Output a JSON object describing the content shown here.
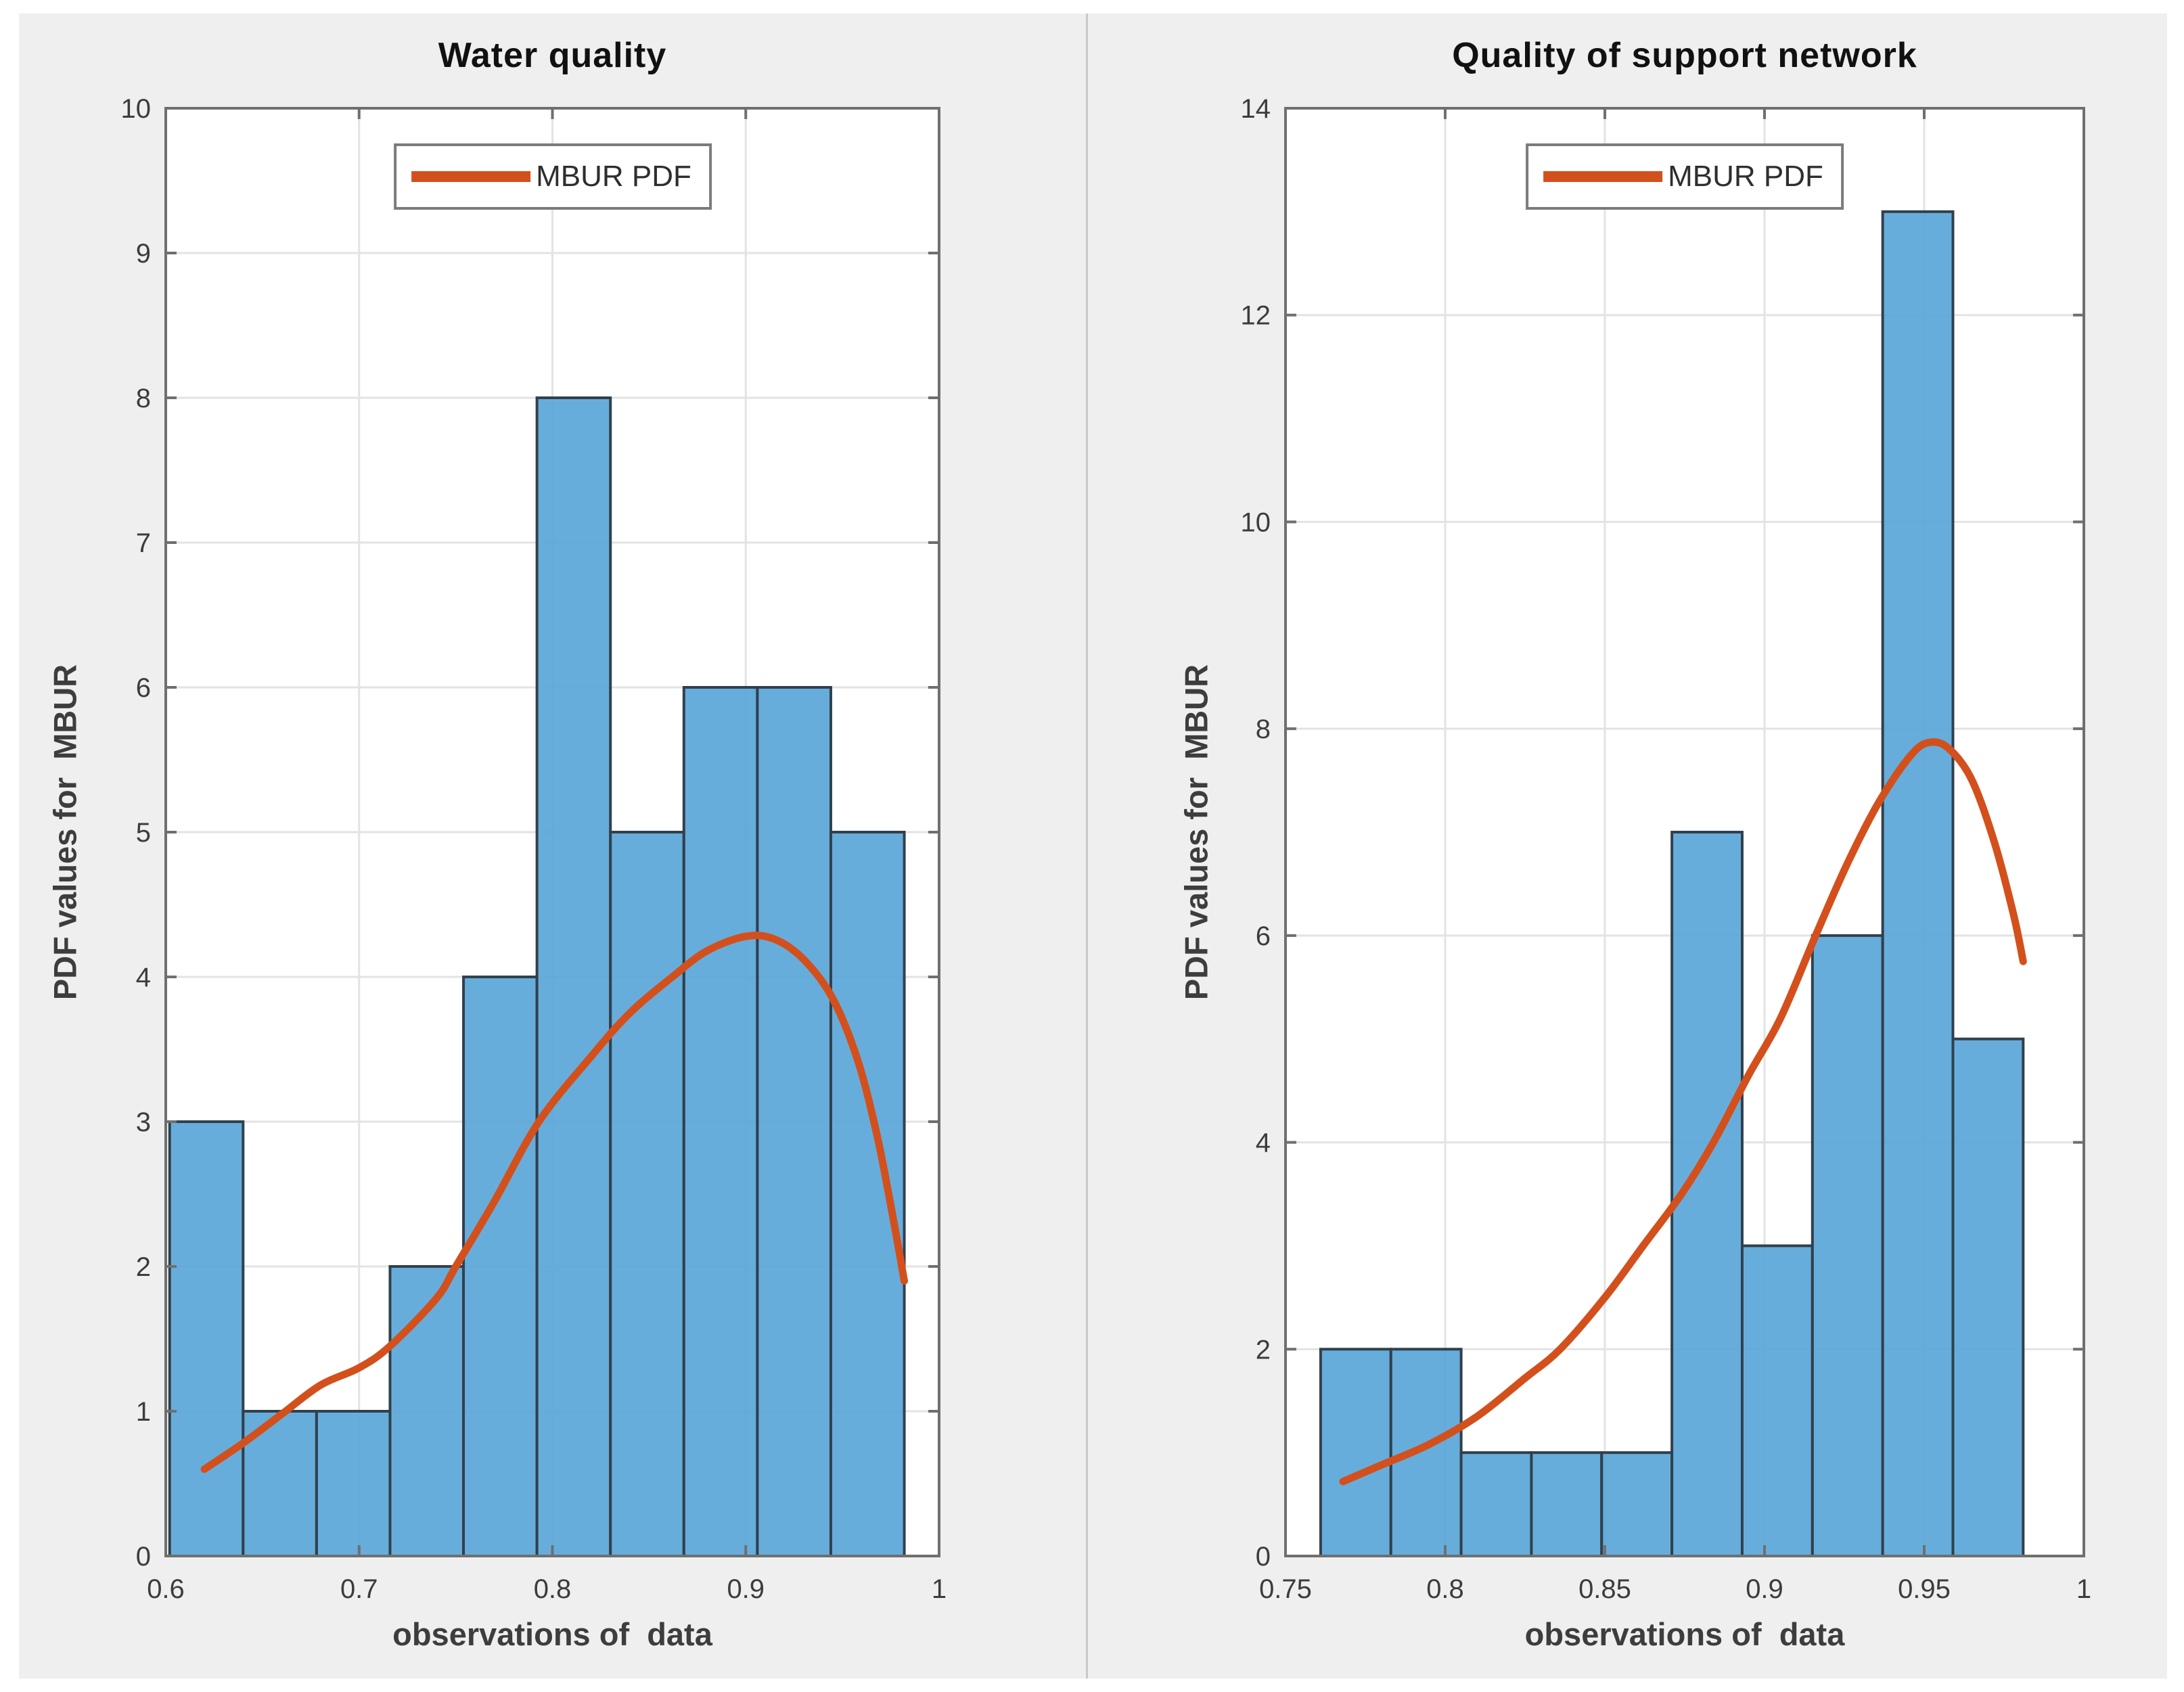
{
  "figure": {
    "page_background": "#FFFFFF",
    "panel_background": "#EFEFEF",
    "divider_color": "#C9C9C9"
  },
  "colors": {
    "bar_fill": "#57A4D7",
    "bar_fill_opacity": 0.9,
    "bar_edge": "#31404D",
    "curve": "#D3501C",
    "grid": "#E3E3E3",
    "axis": "#6F6F6F",
    "tick_text": "#3C3C3C",
    "plot_background": "#FFFFFF",
    "legend_border": "#7B7B7B",
    "legend_background": "#FFFFFF"
  },
  "chart_data": [
    {
      "type": "bar",
      "subtype": "histogram-with-pdf-line",
      "title": "Water quality",
      "xlabel": "observations of  data",
      "ylabel": "PDF values for  MBUR",
      "legend": [
        {
          "label": "MBUR PDF",
          "color": "#D3501C",
          "style": "line"
        }
      ],
      "legend_position": "top-center-inside",
      "grid": true,
      "xlim": [
        0.6,
        1.0
      ],
      "ylim": [
        0,
        10
      ],
      "xticks": {
        "values": [
          0.6,
          0.7,
          0.8,
          0.9,
          1.0
        ],
        "labels": [
          "0.6",
          "0.7",
          "0.8",
          "0.9",
          "1"
        ]
      },
      "yticks": {
        "values": [
          0,
          1,
          2,
          3,
          4,
          5,
          6,
          7,
          8,
          9,
          10
        ],
        "labels": [
          "0",
          "1",
          "2",
          "3",
          "4",
          "5",
          "6",
          "7",
          "8",
          "9",
          "10"
        ]
      },
      "bins": {
        "start": 0.602,
        "width": 0.038,
        "counts": [
          3,
          1,
          1,
          2,
          4,
          8,
          5,
          6,
          6,
          5
        ]
      },
      "curve": {
        "name": "MBUR PDF",
        "points": [
          [
            0.62,
            0.6
          ],
          [
            0.64,
            0.78
          ],
          [
            0.66,
            0.98
          ],
          [
            0.68,
            1.18
          ],
          [
            0.7,
            1.3
          ],
          [
            0.716,
            1.45
          ],
          [
            0.74,
            1.78
          ],
          [
            0.75,
            2.0
          ],
          [
            0.77,
            2.45
          ],
          [
            0.793,
            3.0
          ],
          [
            0.82,
            3.45
          ],
          [
            0.84,
            3.75
          ],
          [
            0.862,
            4.0
          ],
          [
            0.88,
            4.18
          ],
          [
            0.9,
            4.28
          ],
          [
            0.915,
            4.26
          ],
          [
            0.93,
            4.12
          ],
          [
            0.945,
            3.85
          ],
          [
            0.958,
            3.42
          ],
          [
            0.968,
            2.9
          ],
          [
            0.976,
            2.35
          ],
          [
            0.982,
            1.9
          ]
        ]
      }
    },
    {
      "type": "bar",
      "subtype": "histogram-with-pdf-line",
      "title": "Quality of support network",
      "xlabel": "observations of  data",
      "ylabel": "PDF values for  MBUR",
      "legend": [
        {
          "label": "MBUR PDF",
          "color": "#D3501C",
          "style": "line"
        }
      ],
      "legend_position": "top-center-inside",
      "grid": true,
      "xlim": [
        0.75,
        1.0
      ],
      "ylim": [
        0,
        14
      ],
      "xticks": {
        "values": [
          0.75,
          0.8,
          0.85,
          0.9,
          0.95,
          1.0
        ],
        "labels": [
          "0.75",
          "0.8",
          "0.85",
          "0.9",
          "0.95",
          "1"
        ]
      },
      "yticks": {
        "values": [
          0,
          2,
          4,
          6,
          8,
          10,
          12,
          14
        ],
        "labels": [
          "0",
          "2",
          "4",
          "6",
          "8",
          "10",
          "12",
          "14"
        ]
      },
      "bins": {
        "start": 0.761,
        "width": 0.022,
        "counts": [
          2,
          2,
          1,
          1,
          1,
          7,
          3,
          6,
          13,
          5
        ]
      },
      "curve": {
        "name": "MBUR PDF",
        "points": [
          [
            0.768,
            0.72
          ],
          [
            0.78,
            0.88
          ],
          [
            0.795,
            1.08
          ],
          [
            0.81,
            1.35
          ],
          [
            0.825,
            1.72
          ],
          [
            0.836,
            2.0
          ],
          [
            0.85,
            2.5
          ],
          [
            0.862,
            3.0
          ],
          [
            0.874,
            3.5
          ],
          [
            0.884,
            4.0
          ],
          [
            0.895,
            4.65
          ],
          [
            0.905,
            5.2
          ],
          [
            0.916,
            6.0
          ],
          [
            0.926,
            6.7
          ],
          [
            0.936,
            7.3
          ],
          [
            0.946,
            7.75
          ],
          [
            0.952,
            7.87
          ],
          [
            0.958,
            7.8
          ],
          [
            0.965,
            7.5
          ],
          [
            0.972,
            6.9
          ],
          [
            0.978,
            6.2
          ],
          [
            0.981,
            5.75
          ]
        ]
      }
    }
  ]
}
